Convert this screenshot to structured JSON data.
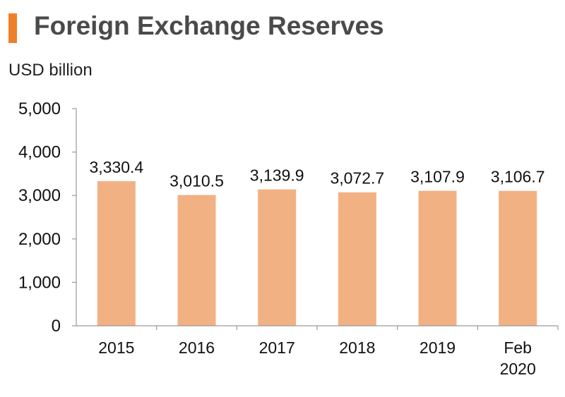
{
  "title": "Foreign Exchange Reserves",
  "unit_label": "USD billion",
  "colors": {
    "accent": "#f07f2a",
    "bar": "#f2b183",
    "axis": "#9a9a9a"
  },
  "chart_data": {
    "type": "bar",
    "title": "Foreign Exchange Reserves",
    "ylabel": "USD billion",
    "xlabel": "",
    "categories": [
      [
        "2015"
      ],
      [
        "2016"
      ],
      [
        "2017"
      ],
      [
        "2018"
      ],
      [
        "2019"
      ],
      [
        "Feb",
        "2020"
      ]
    ],
    "values": [
      3330.4,
      3010.5,
      3139.9,
      3072.7,
      3107.9,
      3106.7
    ],
    "value_labels": [
      "3,330.4",
      "3,010.5",
      "3,139.9",
      "3,072.7",
      "3,107.9",
      "3,106.7"
    ],
    "ylim": [
      0,
      5000
    ],
    "yticks": [
      0,
      1000,
      2000,
      3000,
      4000,
      5000
    ],
    "ytick_labels": [
      "0",
      "1,000",
      "2,000",
      "3,000",
      "4,000",
      "5,000"
    ],
    "grid": false,
    "legend": "none"
  }
}
